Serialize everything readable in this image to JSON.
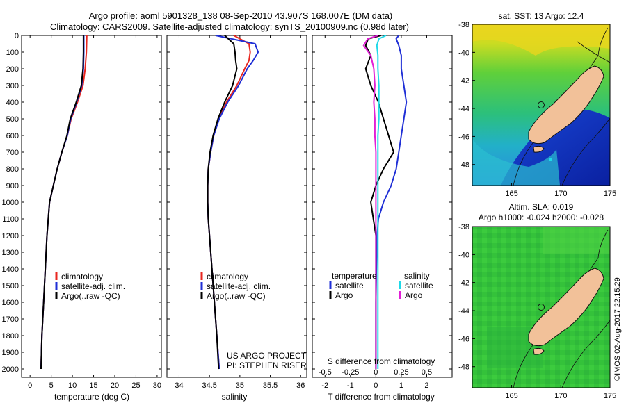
{
  "header": {
    "title_line1": "Argo profile: aoml 5901328_138 08-Sep-2010 43.907S 168.007E (DM data)",
    "title_line2": "Climatology: CARS2009. Satellite-adjusted climatology: synTS_20100909.nc (0.98d later)"
  },
  "stamp": "©IMOS 02-Aug-2017 22:15:29",
  "colors": {
    "climatology": "#e8261f",
    "satellite": "#1f2fd6",
    "argo": "#000000",
    "satellite_salinity": "#1fd9e8",
    "argo_salinity": "#e21fd6",
    "land": "#f2c199"
  },
  "chart_data": [
    {
      "type": "line",
      "id": "temperature",
      "xlabel": "temperature (deg C)",
      "xlim": [
        -2,
        31
      ],
      "xticks": [
        "0",
        "5",
        "10",
        "15",
        "20",
        "25",
        "30"
      ],
      "ylim": [
        0,
        2050
      ],
      "yticks": [
        "0",
        "100",
        "200",
        "300",
        "400",
        "500",
        "600",
        "700",
        "800",
        "900",
        "1000",
        "1100",
        "1200",
        "1300",
        "1400",
        "1500",
        "1600",
        "1700",
        "1800",
        "1900",
        "2000"
      ],
      "legend": [
        "climatology",
        "satellite-adj. clim.",
        "Argo(..raw -QC)"
      ],
      "legend_placement": "lower-center",
      "series": [
        {
          "name": "climatology",
          "color": "#e8261f",
          "x": [
            13.4,
            13.3,
            13.0,
            12.5,
            11.2,
            9.7,
            8.8,
            7.5,
            6.4,
            5.5,
            4.6,
            4.0,
            3.6,
            3.2,
            2.8,
            2.6
          ],
          "y": [
            0,
            100,
            200,
            300,
            400,
            500,
            600,
            700,
            800,
            900,
            1000,
            1200,
            1400,
            1600,
            1800,
            2000
          ]
        },
        {
          "name": "satellite-adj. clim.",
          "color": "#1f2fd6",
          "x": [
            12.7,
            12.7,
            12.6,
            12.2,
            11.0,
            9.6,
            8.8,
            7.5,
            6.4,
            5.5,
            4.6,
            4.0,
            3.6,
            3.2,
            2.8,
            2.6
          ],
          "y": [
            0,
            100,
            200,
            300,
            400,
            500,
            600,
            700,
            800,
            900,
            1000,
            1200,
            1400,
            1600,
            1800,
            2000
          ]
        },
        {
          "name": "Argo(..raw -QC)",
          "color": "#000000",
          "x": [
            12.6,
            12.6,
            12.5,
            12.1,
            10.9,
            9.5,
            8.7,
            7.5,
            6.4,
            5.5,
            4.6,
            4.0,
            3.6,
            3.2,
            2.8,
            2.6
          ],
          "y": [
            0,
            100,
            200,
            300,
            400,
            500,
            600,
            700,
            800,
            900,
            1000,
            1200,
            1400,
            1600,
            1800,
            2000
          ]
        }
      ]
    },
    {
      "type": "line",
      "id": "salinity",
      "xlabel": "salinity",
      "xlim": [
        33.8,
        36.1
      ],
      "xticks": [
        "34",
        "34.5",
        "35",
        "35.5",
        "36"
      ],
      "ylim": [
        0,
        2050
      ],
      "legend": [
        "climatology",
        "satellite-adj. clim.",
        "Argo(..raw -QC)"
      ],
      "legend_placement": "lower-center",
      "annotation": [
        "US ARGO PROJECT",
        "PI: STEPHEN RISER"
      ],
      "series": [
        {
          "name": "climatology",
          "color": "#e8261f",
          "x": [
            34.9,
            35.15,
            35.17,
            35.15,
            35.08,
            34.95,
            34.78,
            34.65,
            34.57,
            34.52,
            34.48,
            34.47,
            34.47,
            34.48,
            34.5,
            34.54,
            34.58,
            34.62,
            34.66
          ],
          "y": [
            0,
            50,
            100,
            150,
            200,
            300,
            400,
            500,
            600,
            700,
            800,
            900,
            1000,
            1100,
            1200,
            1400,
            1600,
            1800,
            2000
          ]
        },
        {
          "name": "satellite-adj. clim.",
          "color": "#1f2fd6",
          "x": [
            34.6,
            35.25,
            35.3,
            35.22,
            35.12,
            34.98,
            34.8,
            34.66,
            34.57,
            34.52,
            34.48,
            34.47,
            34.47,
            34.48,
            34.5,
            34.54,
            34.58,
            34.62,
            34.66
          ],
          "y": [
            0,
            50,
            100,
            150,
            200,
            300,
            400,
            500,
            600,
            700,
            800,
            900,
            1000,
            1100,
            1200,
            1400,
            1600,
            1800,
            2000
          ]
        },
        {
          "name": "Argo(..raw -QC)",
          "color": "#000000",
          "x": [
            34.75,
            34.9,
            34.92,
            34.93,
            34.95,
            34.88,
            34.75,
            34.64,
            34.56,
            34.51,
            34.48,
            34.47,
            34.47,
            34.48,
            34.5,
            34.54,
            34.58,
            34.62,
            34.65
          ],
          "y": [
            0,
            50,
            100,
            150,
            200,
            300,
            400,
            500,
            600,
            700,
            800,
            900,
            1000,
            1100,
            1200,
            1400,
            1600,
            1800,
            2000
          ]
        }
      ]
    },
    {
      "type": "line",
      "id": "difference",
      "xlabel": "T difference from climatology",
      "xlim": [
        -2.5,
        3.0
      ],
      "xticks": [
        "-2",
        "-1",
        "0",
        "1",
        "2"
      ],
      "top_label": "S difference from climatology",
      "top_xlim": [
        -0.625,
        0.75
      ],
      "top_xticks": [
        "-0.5",
        "-0.25",
        "0",
        "0.25",
        "0.5"
      ],
      "ylim": [
        0,
        2050
      ],
      "legend_headers": [
        "temperature",
        "salinity"
      ],
      "legend": [
        "satellite",
        "Argo",
        "satellite",
        "Argo"
      ],
      "legend_placement": "lower-center",
      "series": [
        {
          "name": "satellite",
          "color": "#1f2fd6",
          "x": [
            0.9,
            0.8,
            0.9,
            1.0,
            1.0,
            1.1,
            1.2,
            1.1,
            1.0,
            0.9,
            0.8,
            0.6,
            0.3,
            0.1,
            0.05,
            0.02,
            0.0,
            0.0
          ],
          "y": [
            0,
            20,
            60,
            120,
            200,
            300,
            400,
            500,
            600,
            700,
            800,
            900,
            1000,
            1100,
            1200,
            1400,
            1600,
            2000
          ]
        },
        {
          "name": "Argo",
          "color": "#000000",
          "x": [
            0.2,
            -0.3,
            -0.4,
            -0.2,
            -0.4,
            -0.2,
            0.1,
            0.3,
            0.5,
            0.7,
            0.3,
            0.0,
            -0.2,
            -0.1,
            0.0,
            0.0,
            0.0,
            0.0
          ],
          "y": [
            0,
            20,
            60,
            120,
            200,
            300,
            400,
            500,
            600,
            700,
            800,
            900,
            1000,
            1100,
            1200,
            1400,
            1600,
            2000
          ]
        },
        {
          "name": "satellite",
          "color": "#1fd9e8",
          "x": [
            0.1,
            0.03,
            0.01,
            0.02,
            0.02,
            0.03,
            0.03,
            0.03,
            0.02,
            0.02,
            0.02,
            0.02,
            0.02,
            0.02,
            0.02,
            0.02,
            0.02,
            0.02
          ],
          "y": [
            0,
            20,
            60,
            120,
            200,
            300,
            400,
            500,
            600,
            700,
            800,
            900,
            1000,
            1100,
            1200,
            1400,
            1600,
            2000
          ]
        },
        {
          "name": "Argo",
          "color": "#e21fd6",
          "x": [
            0.02,
            -0.08,
            -0.12,
            -0.05,
            -0.02,
            -0.01,
            -0.02,
            -0.01,
            -0.01,
            0.0,
            0.0,
            0.0,
            0.0,
            0.0,
            0.0,
            0.0,
            0.0,
            0.0
          ],
          "y": [
            0,
            20,
            60,
            120,
            200,
            300,
            400,
            500,
            600,
            700,
            800,
            900,
            1000,
            1100,
            1200,
            1400,
            1600,
            2000
          ]
        }
      ]
    },
    {
      "type": "heatmap",
      "id": "sst_map",
      "title": "sat. SST: 13 Argo: 12.4",
      "xlim": [
        161,
        175
      ],
      "ylim": [
        -49.5,
        -38
      ],
      "xticks": [
        "165",
        "170",
        "175"
      ],
      "yticks": [
        "-38",
        "-40",
        "-42",
        "-44",
        "-46",
        "-48"
      ],
      "profile_location": [
        168.007,
        -43.907
      ]
    },
    {
      "type": "heatmap",
      "id": "sla_map",
      "title_line1": "Altim. SLA: 0.019",
      "title_line2": "Argo h1000: -0.024 h2000: -0.028",
      "xlim": [
        161,
        175
      ],
      "ylim": [
        -49.5,
        -38
      ],
      "xticks": [
        "165",
        "170",
        "175"
      ],
      "yticks": [
        "-38",
        "-40",
        "-42",
        "-44",
        "-46",
        "-48"
      ],
      "profile_location": [
        168.007,
        -43.907
      ]
    }
  ]
}
